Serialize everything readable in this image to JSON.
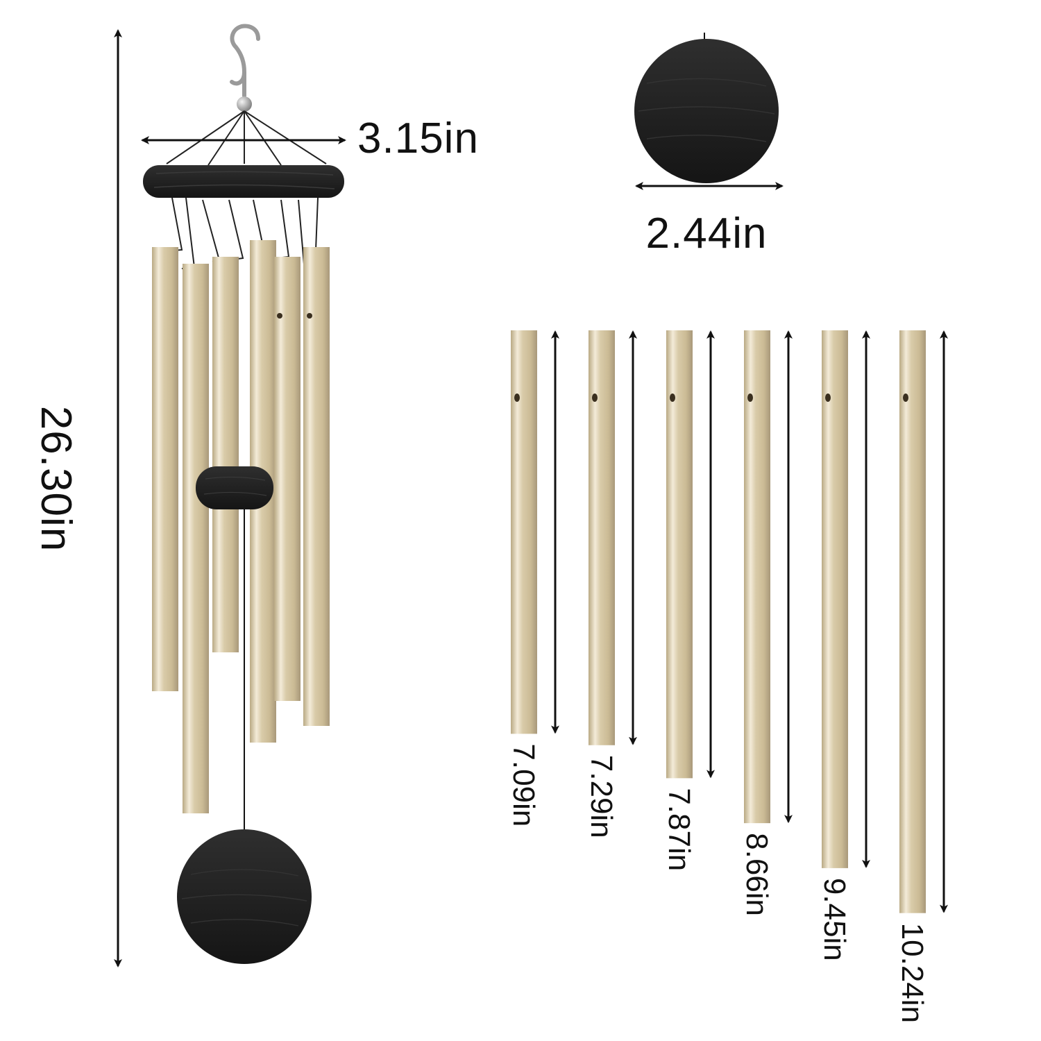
{
  "colors": {
    "tube_gold": "#d8c9a6",
    "tube_highlight": "#f6efdf",
    "tube_shadow": "#a8987a",
    "wood_black": "#1c1c1c",
    "wood_grain": "#2b2b2b",
    "line": "#111111"
  },
  "icons": {
    "hook": "s-hook-icon",
    "bead": "metal-bead-icon",
    "arrow": "double-arrow-icon"
  },
  "labels": {
    "overall_height": "26.30in",
    "top_ring_width": "3.15in",
    "sail_diameter": "2.44in"
  },
  "tubes": [
    {
      "label": "7.09in",
      "length_in": 7.09
    },
    {
      "label": "7.29in",
      "length_in": 7.29
    },
    {
      "label": "7.87in",
      "length_in": 7.87
    },
    {
      "label": "8.66in",
      "length_in": 8.66
    },
    {
      "label": "9.45in",
      "length_in": 9.45
    },
    {
      "label": "10.24in",
      "length_in": 10.24
    }
  ]
}
